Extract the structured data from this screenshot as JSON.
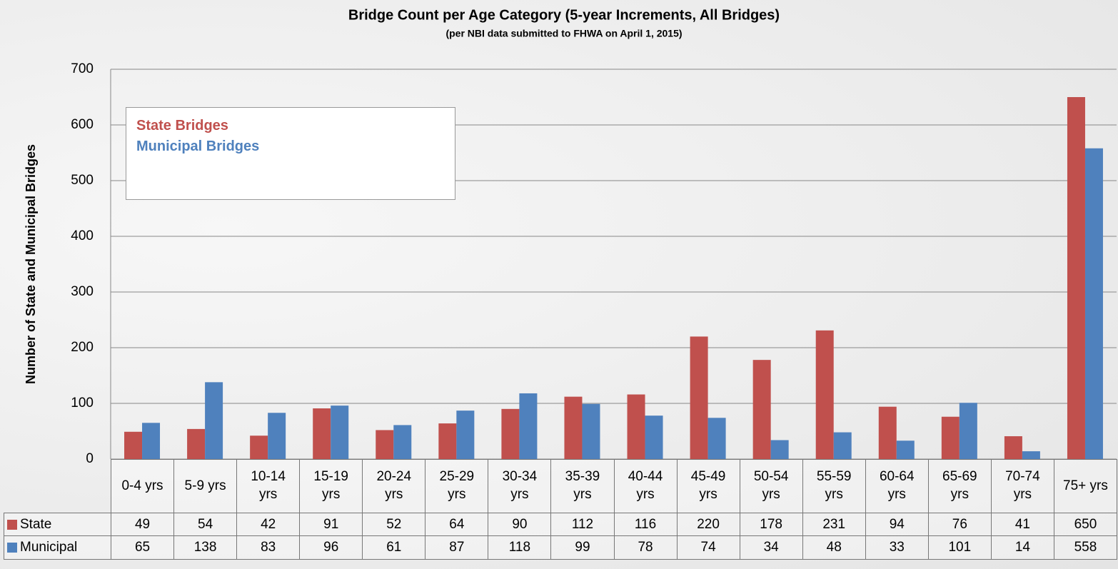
{
  "chart_data": {
    "type": "bar",
    "title": "Bridge Count per Age Category (5-year Increments, All Bridges)",
    "subtitle": "(per NBI data submitted to FHWA on April 1, 2015)",
    "y_label": "Number of State and Municipal Bridges",
    "categories": [
      "0-4 yrs",
      "5-9 yrs",
      "10-14 yrs",
      "15-19 yrs",
      "20-24 yrs",
      "25-29 yrs",
      "30-34 yrs",
      "35-39 yrs",
      "40-44 yrs",
      "45-49 yrs",
      "50-54 yrs",
      "55-59 yrs",
      "60-64 yrs",
      "65-69 yrs",
      "70-74 yrs",
      "75+ yrs"
    ],
    "series": [
      {
        "name": "State",
        "color": "#c0504d",
        "values": [
          49,
          54,
          42,
          91,
          52,
          64,
          90,
          112,
          116,
          220,
          178,
          231,
          94,
          76,
          41,
          650
        ]
      },
      {
        "name": "Municipal",
        "color": "#4f81bd",
        "values": [
          65,
          138,
          83,
          96,
          61,
          87,
          118,
          99,
          78,
          74,
          34,
          48,
          33,
          101,
          14,
          558
        ]
      }
    ],
    "legend_labels": [
      "State Bridges",
      "Municipal Bridges"
    ],
    "ylim": [
      0,
      700
    ],
    "yticks": [
      0,
      100,
      200,
      300,
      400,
      500,
      600,
      700
    ],
    "grid": true
  }
}
